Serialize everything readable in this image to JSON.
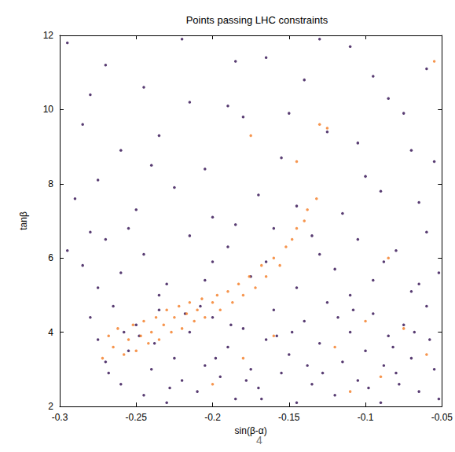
{
  "chart_data": {
    "type": "scatter",
    "title": "Points passing LHC constraints",
    "x_label": "sin(β-α)",
    "y_label": "tanβ",
    "annotation": "4",
    "xlim": [
      -0.3,
      -0.05
    ],
    "ylim": [
      2,
      12
    ],
    "xticks": [
      -0.3,
      -0.25,
      -0.2,
      -0.15,
      -0.1,
      -0.05
    ],
    "yticks": [
      2,
      4,
      6,
      8,
      10,
      12
    ],
    "grid": false,
    "series": [
      {
        "color": "#2e0b4f",
        "marker": "circle",
        "x": [
          -0.295,
          -0.27,
          -0.245,
          -0.22,
          -0.19,
          -0.165,
          -0.14,
          -0.11,
          -0.085,
          -0.06,
          -0.285,
          -0.26,
          -0.235,
          -0.205,
          -0.18,
          -0.155,
          -0.125,
          -0.1,
          -0.075,
          -0.055,
          -0.29,
          -0.275,
          -0.25,
          -0.225,
          -0.2,
          -0.17,
          -0.145,
          -0.115,
          -0.09,
          -0.065,
          -0.28,
          -0.215,
          -0.13,
          -0.095,
          -0.07,
          -0.24,
          -0.185,
          -0.15,
          -0.105,
          -0.28,
          -0.295,
          -0.285,
          -0.27,
          -0.26,
          -0.245,
          -0.23,
          -0.215,
          -0.2,
          -0.19,
          -0.175,
          -0.16,
          -0.145,
          -0.13,
          -0.12,
          -0.105,
          -0.095,
          -0.08,
          -0.07,
          -0.06,
          -0.052,
          -0.275,
          -0.255,
          -0.235,
          -0.205,
          -0.165,
          -0.135,
          -0.11,
          -0.088,
          -0.065,
          -0.185,
          -0.28,
          -0.275,
          -0.27,
          -0.265,
          -0.26,
          -0.255,
          -0.25,
          -0.245,
          -0.24,
          -0.235,
          -0.23,
          -0.225,
          -0.22,
          -0.215,
          -0.21,
          -0.205,
          -0.2,
          -0.195,
          -0.19,
          -0.185,
          -0.18,
          -0.175,
          -0.17,
          -0.165,
          -0.16,
          -0.155,
          -0.15,
          -0.145,
          -0.14,
          -0.135,
          -0.13,
          -0.125,
          -0.12,
          -0.115,
          -0.11,
          -0.105,
          -0.1,
          -0.095,
          -0.09,
          -0.085,
          -0.08,
          -0.075,
          -0.07,
          -0.065,
          -0.06,
          -0.055,
          -0.052,
          -0.058,
          -0.068,
          -0.078,
          -0.258,
          -0.238,
          -0.218,
          -0.198,
          -0.178,
          -0.158,
          -0.138,
          -0.118,
          -0.098,
          -0.082,
          -0.268,
          -0.248,
          -0.228,
          -0.208,
          -0.188,
          -0.168,
          -0.148,
          -0.128,
          -0.108,
          -0.088
        ],
        "values": [
          11.8,
          11.2,
          10.6,
          11.9,
          10.1,
          11.4,
          10.8,
          11.7,
          10.3,
          11.1,
          9.6,
          8.9,
          9.3,
          8.4,
          9.8,
          8.7,
          9.4,
          8.2,
          9.9,
          8.6,
          7.6,
          8.1,
          7.3,
          7.9,
          7.1,
          7.7,
          7.4,
          7.2,
          7.8,
          7.5,
          10.4,
          10.2,
          11.9,
          10.9,
          8.9,
          8.5,
          11.3,
          9.9,
          9.1,
          6.7,
          6.2,
          5.8,
          6.5,
          5.6,
          6.1,
          5.3,
          6.6,
          5.9,
          6.3,
          5.5,
          6.8,
          5.2,
          6.1,
          5.7,
          6.5,
          5.4,
          6.2,
          5.1,
          6.7,
          5.6,
          5.2,
          6.8,
          5.0,
          5.4,
          5.9,
          6.6,
          5.0,
          5.9,
          5.3,
          6.9,
          4.4,
          3.8,
          3.2,
          4.7,
          2.6,
          3.5,
          4.2,
          2.3,
          3.0,
          4.6,
          2.1,
          3.3,
          2.7,
          4.0,
          2.4,
          3.1,
          4.4,
          2.8,
          3.6,
          2.2,
          4.1,
          3.0,
          2.5,
          3.8,
          4.6,
          2.9,
          3.4,
          2.1,
          4.3,
          2.6,
          3.7,
          4.8,
          2.3,
          3.2,
          4.0,
          2.7,
          3.5,
          4.5,
          2.1,
          3.9,
          2.9,
          4.2,
          3.3,
          2.4,
          4.7,
          3.0,
          2.2,
          3.8,
          4.0,
          2.6,
          4.0,
          3.7,
          4.5,
          3.3,
          2.7,
          3.9,
          3.1,
          4.4,
          2.5,
          3.6,
          2.9,
          3.9,
          2.5,
          4.7,
          4.2,
          2.2,
          4.0,
          2.9,
          4.6,
          3.1
        ]
      },
      {
        "color": "#f47a22",
        "marker": "circle",
        "x": [
          -0.268,
          -0.265,
          -0.262,
          -0.258,
          -0.255,
          -0.252,
          -0.25,
          -0.247,
          -0.245,
          -0.242,
          -0.24,
          -0.237,
          -0.235,
          -0.232,
          -0.23,
          -0.227,
          -0.225,
          -0.222,
          -0.22,
          -0.217,
          -0.215,
          -0.212,
          -0.21,
          -0.207,
          -0.205,
          -0.2,
          -0.197,
          -0.195,
          -0.19,
          -0.187,
          -0.183,
          -0.18,
          -0.176,
          -0.172,
          -0.168,
          -0.165,
          -0.16,
          -0.156,
          -0.152,
          -0.148,
          -0.145,
          -0.14,
          -0.138,
          -0.132,
          -0.125,
          -0.175,
          -0.272,
          -0.1,
          -0.09,
          -0.12,
          -0.075,
          -0.06,
          -0.18,
          -0.16,
          -0.11,
          -0.2,
          -0.145,
          -0.13,
          -0.055,
          -0.085
        ],
        "values": [
          3.9,
          3.6,
          4.1,
          3.4,
          3.8,
          4.2,
          3.5,
          3.9,
          4.3,
          3.7,
          4.0,
          4.4,
          3.8,
          4.2,
          4.6,
          4.0,
          4.4,
          4.7,
          4.1,
          4.5,
          4.8,
          4.3,
          4.6,
          4.9,
          4.4,
          4.8,
          5.0,
          4.6,
          5.1,
          4.8,
          5.3,
          5.0,
          5.5,
          5.2,
          5.8,
          5.5,
          6.0,
          5.8,
          6.3,
          6.5,
          6.8,
          7.0,
          7.3,
          7.6,
          9.5,
          9.3,
          3.3,
          4.3,
          2.8,
          3.6,
          4.1,
          3.4,
          3.3,
          3.9,
          2.4,
          2.6,
          8.6,
          9.6,
          11.3,
          6.0
        ]
      }
    ]
  }
}
